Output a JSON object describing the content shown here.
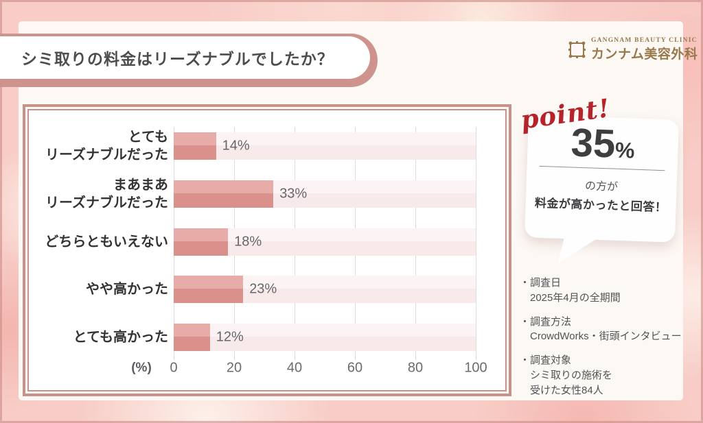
{
  "header": {
    "title": "シミ取りの料金はリーズナブルでしたか？",
    "logo": {
      "clinic_en": "GANGNAM BEAUTY CLINIC",
      "clinic_jp": "カンナム美容外科",
      "gold_color": "#97794b"
    }
  },
  "chart_data": {
    "type": "bar",
    "orientation": "horizontal",
    "title": "シミ取りの料金はリーズナブルでしたか？",
    "categories": [
      "とても\nリーズナブルだった",
      "まあまあ\nリーズナブルだった",
      "どちらともいえない",
      "やや高かった",
      "とても高かった"
    ],
    "values": [
      14,
      33,
      18,
      23,
      12
    ],
    "unit": "%",
    "xlabel": "(%)",
    "xticks": [
      0,
      20,
      40,
      60,
      80,
      100
    ],
    "xlim": [
      0,
      100
    ],
    "grid": "vertical",
    "legend": "none",
    "bar_color_top": "#e7aca7",
    "bar_color_bottom": "#da918c",
    "track_color_top": "#fcf4f4",
    "track_color_bottom": "#f8eaea"
  },
  "callout": {
    "tag": "point!",
    "big_value": "35",
    "big_unit": "%",
    "line1": "の方が",
    "line2": "料金が高かったと回答！"
  },
  "survey": {
    "bullet_glyph": "・",
    "notes": [
      {
        "label": "調査日",
        "value": "2025年4月の全期間"
      },
      {
        "label": "調査方法",
        "value": "CrowdWorks・街頭インタビュー"
      },
      {
        "label": "調査対象",
        "value": "シミ取りの施術を\n受けた女性84人"
      }
    ]
  },
  "colors": {
    "banner_pink": "#cf938d",
    "chart_border_pink": "#c9918c",
    "point_red": "#b6242b",
    "background_base": "#f8cdc7"
  }
}
